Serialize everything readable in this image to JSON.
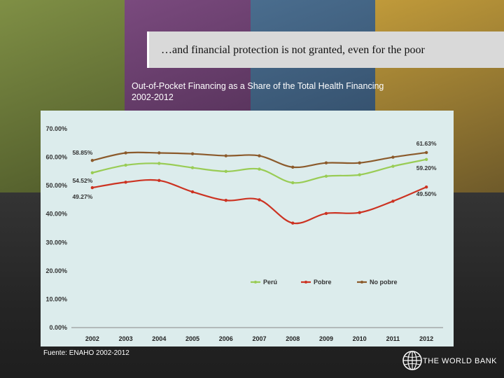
{
  "slide": {
    "title": "…and financial protection is not granted, even for the poor",
    "subtitle_line1": "Out-of-Pocket Financing as a Share of the Total Health Financing",
    "subtitle_line2": "2002-2012",
    "source": "Fuente: ENAHO 2002-2012",
    "logo_text": "THE WORLD BANK",
    "colors": {
      "tile1": "#6c7b3c",
      "tile2": "#6b3a6c",
      "tile3": "#3c5d7c",
      "tile4": "#b08a2c"
    }
  },
  "chart_data": {
    "type": "line",
    "categories": [
      "2002",
      "2003",
      "2004",
      "2005",
      "2006",
      "2007",
      "2008",
      "2009",
      "2010",
      "2011",
      "2012"
    ],
    "ylim": [
      0,
      70
    ],
    "yticks": [
      "0.00%",
      "10.00%",
      "20.00%",
      "30.00%",
      "40.00%",
      "50.00%",
      "60.00%",
      "70.00%"
    ],
    "grid": false,
    "legend_position": "bottom-right",
    "series": [
      {
        "name": "Perú",
        "color": "#99cc55",
        "values": [
          54.52,
          57.2,
          57.8,
          56.3,
          55.0,
          55.8,
          51.0,
          53.3,
          53.8,
          56.8,
          59.2
        ]
      },
      {
        "name": "Pobre",
        "color": "#cc3322",
        "values": [
          49.27,
          51.2,
          51.8,
          47.8,
          44.8,
          45.0,
          36.8,
          40.2,
          40.5,
          44.5,
          49.5
        ]
      },
      {
        "name": "No pobre",
        "color": "#8b5a2b",
        "values": [
          58.85,
          61.5,
          61.5,
          61.2,
          60.5,
          60.5,
          56.5,
          58.0,
          58.0,
          60.0,
          61.63
        ]
      }
    ],
    "annotations": [
      {
        "text": "58.85%",
        "series": "No pobre",
        "index": 0
      },
      {
        "text": "54.52%",
        "series": "Perú",
        "index": 0
      },
      {
        "text": "49.27%",
        "series": "Pobre",
        "index": 0
      },
      {
        "text": "61.63%",
        "series": "No pobre",
        "index": 10
      },
      {
        "text": "59.20%",
        "series": "Perú",
        "index": 10
      },
      {
        "text": "49.50%",
        "series": "Pobre",
        "index": 10
      }
    ]
  }
}
